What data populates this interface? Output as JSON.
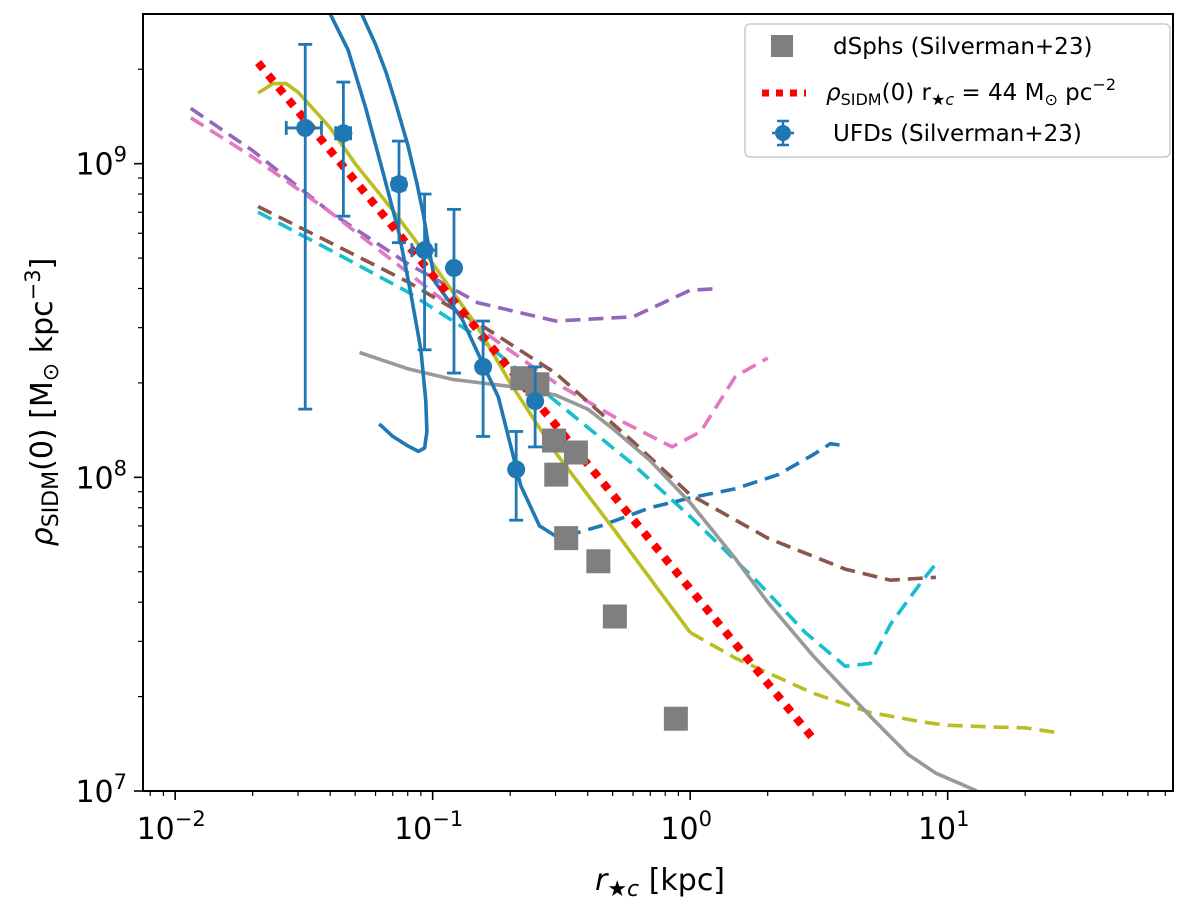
{
  "chart_data": {
    "type": "scatter",
    "xscale": "log",
    "yscale": "log",
    "xlim": [
      0.0075,
      75
    ],
    "ylim": [
      10000000,
      3000000000
    ],
    "xlabel": {
      "main": "r",
      "sub": "★c",
      "unit": " [kpc]"
    },
    "ylabel": {
      "main": "ρ",
      "sub": "SIDM",
      "rest": "(0)  [M",
      "sun_sub": "⊙",
      "tail": " kpc",
      "sup": "−3",
      "close": "]"
    },
    "xticks": [
      {
        "value": 0.01,
        "base": "10",
        "exp": "−2"
      },
      {
        "value": 0.1,
        "base": "10",
        "exp": "−1"
      },
      {
        "value": 1,
        "base": "10",
        "exp": "0"
      },
      {
        "value": 10,
        "base": "10",
        "exp": "1"
      }
    ],
    "yticks": [
      {
        "value": 10000000,
        "base": "10",
        "exp": "7"
      },
      {
        "value": 100000000,
        "base": "10",
        "exp": "8"
      },
      {
        "value": 1000000000,
        "base": "10",
        "exp": "9"
      }
    ],
    "legend": {
      "position": "top-right",
      "entries": [
        {
          "label": "dSphs (Silverman+23)",
          "marker": "square",
          "color": "#7f7f7f"
        },
        {
          "label": "ρ_SIDM(0) r_★c = 44 M_⊙ pc^−2",
          "parts": {
            "rho": "ρ",
            "sub1": "SIDM",
            "mid": "(0) r",
            "sub2": "★c",
            "eq": " = 44 M",
            "sub3": "⊙",
            "unit": " pc",
            "sup": "−2"
          },
          "marker": "dotted-line",
          "color": "#ff0000"
        },
        {
          "label": "UFDs (Silverman+23)",
          "marker": "errorbar-circle",
          "color": "#1f77b4"
        }
      ]
    },
    "series": [
      {
        "name": "UFDs (Silverman+23)",
        "kind": "errorbar",
        "color": "#1f77b4",
        "points": [
          {
            "x": 0.032,
            "y": 1300000000,
            "ylo": 165000000,
            "yhi": 2400000000,
            "xlo": 0.027,
            "xhi": 0.037
          },
          {
            "x": 0.045,
            "y": 1250000000,
            "ylo": 680000000,
            "yhi": 1820000000,
            "xlo": 0.042,
            "xhi": 0.048
          },
          {
            "x": 0.074,
            "y": 860000000,
            "ylo": 560000000,
            "yhi": 1180000000,
            "xlo": 0.07,
            "xhi": 0.078
          },
          {
            "x": 0.093,
            "y": 530000000,
            "ylo": 255000000,
            "yhi": 800000000,
            "xlo": 0.083,
            "xhi": 0.103
          },
          {
            "x": 0.121,
            "y": 465000000,
            "ylo": 215000000,
            "yhi": 715000000,
            "xlo": 0.119,
            "xhi": 0.123
          },
          {
            "x": 0.157,
            "y": 225000000,
            "ylo": 135000000,
            "yhi": 315000000,
            "xlo": 0.155,
            "xhi": 0.159
          },
          {
            "x": 0.211,
            "y": 106000000,
            "ylo": 73000000,
            "yhi": 140000000,
            "xlo": 0.209,
            "xhi": 0.213
          },
          {
            "x": 0.25,
            "y": 175000000,
            "ylo": 125000000,
            "yhi": 225000000,
            "xlo": 0.248,
            "xhi": 0.252
          }
        ]
      },
      {
        "name": "dSphs (Silverman+23)",
        "kind": "squares",
        "color": "#7f7f7f",
        "points": [
          {
            "x": 0.223,
            "y": 207000000
          },
          {
            "x": 0.255,
            "y": 198000000
          },
          {
            "x": 0.296,
            "y": 131000000
          },
          {
            "x": 0.302,
            "y": 102000000
          },
          {
            "x": 0.33,
            "y": 64000000
          },
          {
            "x": 0.36,
            "y": 120000000
          },
          {
            "x": 0.44,
            "y": 54000000
          },
          {
            "x": 0.51,
            "y": 36000000
          },
          {
            "x": 0.88,
            "y": 17000000
          }
        ]
      },
      {
        "name": "ρ_SIDM(0) r_★c = 44 M_⊙ pc^−2",
        "kind": "dotted",
        "color": "#ff0000",
        "x": [
          0.021,
          3.0
        ],
        "y": [
          2100000000,
          14700000
        ]
      },
      {
        "name": "purple dashed",
        "kind": "dashed",
        "color": "#9467bd",
        "x": [
          0.0115,
          0.02,
          0.04,
          0.08,
          0.15,
          0.3,
          0.6,
          1.0,
          1.3
        ],
        "y": [
          1500000000,
          1100000000,
          700000000,
          480000000,
          360000000,
          315000000,
          325000000,
          395000000,
          400000000
        ]
      },
      {
        "name": "pink dashed",
        "kind": "dashed",
        "color": "#e377c2",
        "x": [
          0.0115,
          0.02,
          0.04,
          0.08,
          0.15,
          0.3,
          0.55,
          0.85,
          1.1,
          1.5,
          2.0
        ],
        "y": [
          1400000000,
          1050000000,
          700000000,
          450000000,
          300000000,
          200000000,
          150000000,
          125000000,
          140000000,
          210000000,
          240000000
        ]
      },
      {
        "name": "brown dashed",
        "kind": "dashed",
        "color": "#8c564b",
        "x": [
          0.021,
          0.04,
          0.08,
          0.15,
          0.3,
          0.6,
          1.0,
          2.0,
          4.0,
          6.0,
          9.0
        ],
        "y": [
          730000000,
          560000000,
          420000000,
          310000000,
          215000000,
          130000000,
          88000000,
          64000000,
          51000000,
          47000000,
          48000000
        ]
      },
      {
        "name": "cyan dashed",
        "kind": "dashed",
        "color": "#17becf",
        "x": [
          0.021,
          0.04,
          0.08,
          0.15,
          0.3,
          0.6,
          1.0,
          1.8,
          2.8,
          4.0,
          5.0,
          6.0,
          8.0,
          9.0
        ],
        "y": [
          700000000,
          530000000,
          390000000,
          280000000,
          175000000,
          110000000,
          75000000,
          47000000,
          32000000,
          25000000,
          25500000,
          34000000,
          47000000,
          53000000
        ]
      },
      {
        "name": "blue dashed",
        "kind": "dashed",
        "color": "#1f77b4",
        "x": [
          0.33,
          0.45,
          0.7,
          1.0,
          1.5,
          2.2,
          3.0,
          3.5,
          4.0
        ],
        "y": [
          65000000,
          70000000,
          80000000,
          86000000,
          92000000,
          102000000,
          118000000,
          128000000,
          126000000
        ]
      },
      {
        "name": "olive curve",
        "kind": "solid",
        "color": "#bcbd22",
        "x": [
          0.021,
          0.024,
          0.027,
          0.03,
          0.035,
          0.04,
          0.05,
          0.07,
          0.1,
          0.15,
          0.2,
          0.3,
          0.5,
          0.8,
          1.0
        ],
        "y": [
          1680000000,
          1800000000,
          1800000000,
          1690000000,
          1470000000,
          1300000000,
          1000000000,
          710000000,
          480000000,
          300000000,
          200000000,
          120000000,
          69000000,
          41000000,
          32000000
        ]
      },
      {
        "name": "olive curve tail",
        "kind": "dashed",
        "color": "#bcbd22",
        "x": [
          1.0,
          1.5,
          2.2,
          3.0,
          5.0,
          8.0,
          10.0,
          15.0,
          20.0,
          26.0
        ],
        "y": [
          32000000,
          26500000,
          23000000,
          20500000,
          17800000,
          16600000,
          16200000,
          16000000,
          15900000,
          15400000
        ]
      },
      {
        "name": "gray solid",
        "kind": "solid",
        "color": "#999999",
        "x": [
          0.052,
          0.08,
          0.12,
          0.2,
          0.3,
          0.4,
          0.5,
          0.7,
          1.0,
          1.5,
          2.0,
          3.0,
          4.0,
          5.0,
          7.0,
          9.0,
          13.0
        ],
        "y": [
          250000000,
          222000000,
          205000000,
          195000000,
          183000000,
          165000000,
          143000000,
          113000000,
          83000000,
          55000000,
          40000000,
          27000000,
          21000000,
          17300000,
          13100000,
          11400000,
          10000000
        ]
      },
      {
        "name": "blue solid A",
        "kind": "solid",
        "color": "#1f77b4",
        "x": [
          0.053,
          0.06,
          0.066,
          0.072,
          0.08,
          0.087,
          0.092,
          0.097,
          0.102,
          0.13,
          0.18,
          0.22,
          0.26,
          0.3,
          0.33
        ],
        "y": [
          3000000000,
          2400000000,
          1950000000,
          1550000000,
          1150000000,
          860000000,
          690000000,
          530000000,
          420000000,
          320000000,
          180000000,
          94000000,
          70000000,
          65000000,
          65000000
        ]
      },
      {
        "name": "blue solid B",
        "kind": "solid",
        "color": "#1f77b4",
        "x": [
          0.04,
          0.047,
          0.055,
          0.065,
          0.074,
          0.082,
          0.09,
          0.094,
          0.095,
          0.093,
          0.088,
          0.08,
          0.07,
          0.062
        ],
        "y": [
          3000000000,
          2300000000,
          1500000000,
          900000000,
          600000000,
          390000000,
          255000000,
          175000000,
          140000000,
          124000000,
          121000000,
          126000000,
          135000000,
          148000000
        ]
      }
    ]
  }
}
